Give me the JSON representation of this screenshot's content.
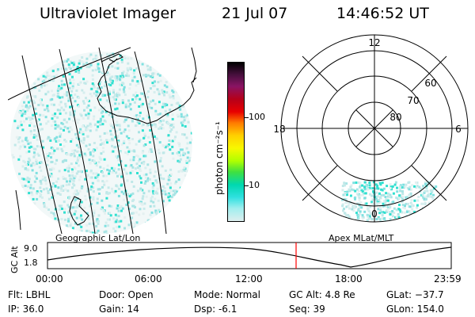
{
  "header": {
    "title": "Ultraviolet Imager",
    "date": "21 Jul 07",
    "time": "14:46:52 UT"
  },
  "geo_panel": {
    "label": "Geographic Lat/Lon"
  },
  "colorbar": {
    "unit_label": "photon cm⁻²s⁻¹",
    "tick_labels": [
      "100",
      "10"
    ],
    "colors": [
      "#000000",
      "#4a1040",
      "#8a1464",
      "#b5001a",
      "#e80000",
      "#ff7a00",
      "#ffd000",
      "#f8f800",
      "#b0ff00",
      "#40e040",
      "#00d8b0",
      "#30e0e0",
      "#a0eeee",
      "#ddeeee"
    ]
  },
  "polar_panel": {
    "label": "Apex MLat/MLT",
    "mlt_labels": [
      "12",
      "18",
      "6",
      "0"
    ],
    "lat_labels": [
      "60",
      "70",
      "80"
    ]
  },
  "altitude_plot": {
    "ylabel": "GC Alt",
    "yticks": [
      "9.0",
      "1.8"
    ],
    "xticks": [
      "00:00",
      "06:00",
      "12:00",
      "18:00",
      "23:59"
    ],
    "marker_color": "#ff0000"
  },
  "info": {
    "filter": "Flt: LBHL",
    "ip": "IP: 36.0",
    "door": "Door: Open",
    "gain": "Gain: 14",
    "mode": "Mode: Normal",
    "dsp": "Dsp:    -6.1",
    "gc_alt": "GC Alt: 4.8 Re",
    "seq": "Seq: 39",
    "glat": "GLat: −37.7",
    "glon": "GLon: 154.0"
  }
}
